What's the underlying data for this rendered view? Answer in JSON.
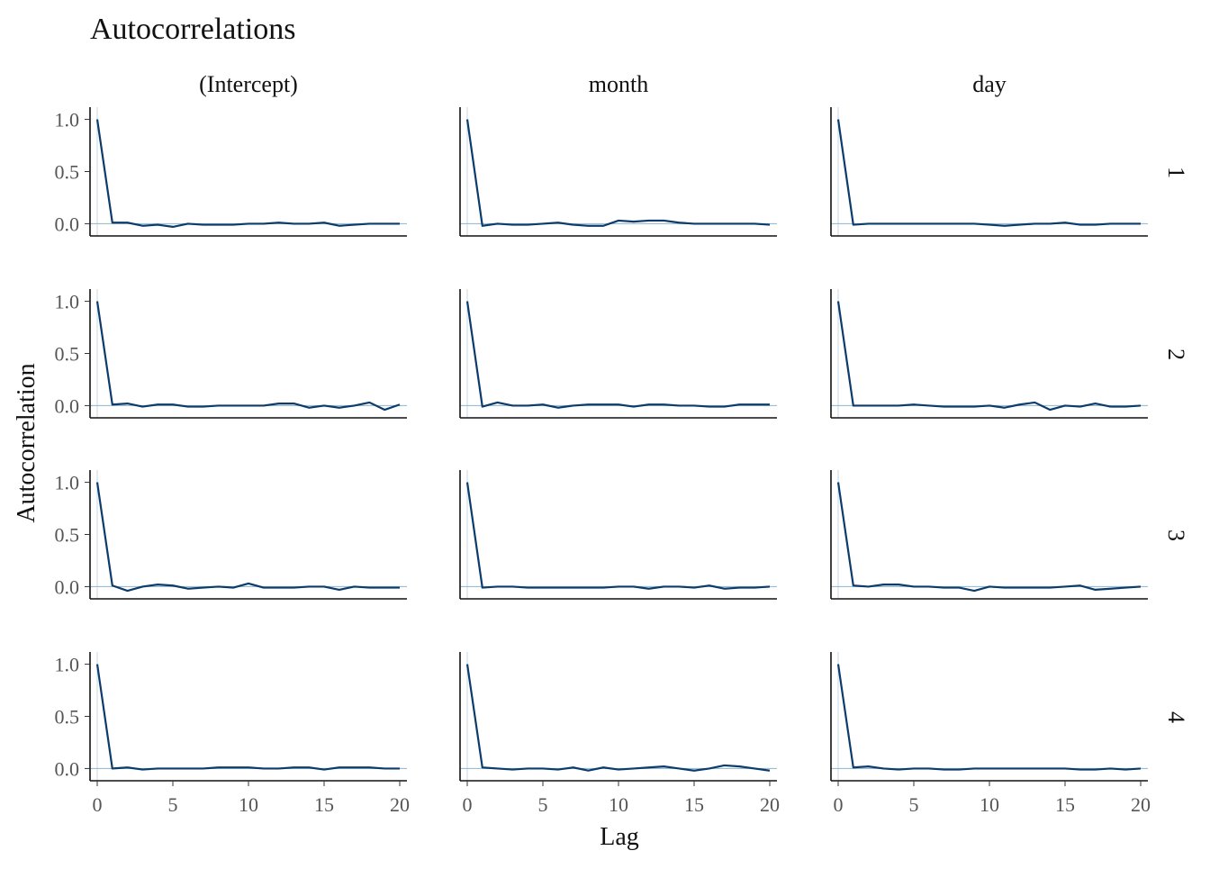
{
  "chart_data": {
    "type": "line",
    "title": "Autocorrelations",
    "xlabel": "Lag",
    "ylabel": "Autocorrelation",
    "columns": [
      "(Intercept)",
      "month",
      "day"
    ],
    "rows": [
      "1",
      "2",
      "3",
      "4"
    ],
    "xlim": [
      0,
      20
    ],
    "ylim": [
      -0.1,
      1.1
    ],
    "x_ticks": [
      0,
      5,
      10,
      15,
      20
    ],
    "y_ticks": [
      "0.0",
      "0.5",
      "1.0"
    ],
    "x_tick_labels": [
      "0",
      "5",
      "10",
      "15",
      "20"
    ],
    "y_tick_labels": [
      "0.0",
      "0.5",
      "1.0"
    ],
    "lags": [
      0,
      1,
      2,
      3,
      4,
      5,
      6,
      7,
      8,
      9,
      10,
      11,
      12,
      13,
      14,
      15,
      16,
      17,
      18,
      19,
      20
    ],
    "grid": false,
    "colors": {
      "line": "#0b3c6b",
      "reference": "#8fb4cc"
    },
    "panels": [
      {
        "row": "1",
        "column": "(Intercept)",
        "values": [
          1.0,
          0.01,
          0.01,
          -0.02,
          -0.01,
          -0.03,
          0.0,
          -0.01,
          -0.01,
          -0.01,
          0.0,
          0.0,
          0.01,
          0.0,
          0.0,
          0.01,
          -0.02,
          -0.01,
          0.0,
          0.0,
          0.0
        ]
      },
      {
        "row": "1",
        "column": "month",
        "values": [
          1.0,
          -0.02,
          0.0,
          -0.01,
          -0.01,
          0.0,
          0.01,
          -0.01,
          -0.02,
          -0.02,
          0.03,
          0.02,
          0.03,
          0.03,
          0.01,
          0.0,
          0.0,
          0.0,
          0.0,
          0.0,
          -0.01
        ]
      },
      {
        "row": "1",
        "column": "day",
        "values": [
          1.0,
          -0.01,
          0.0,
          0.0,
          0.0,
          0.0,
          0.0,
          0.0,
          0.0,
          0.0,
          -0.01,
          -0.02,
          -0.01,
          0.0,
          0.0,
          0.01,
          -0.01,
          -0.01,
          0.0,
          0.0,
          0.0
        ]
      },
      {
        "row": "2",
        "column": "(Intercept)",
        "values": [
          1.0,
          0.01,
          0.02,
          -0.01,
          0.01,
          0.01,
          -0.01,
          -0.01,
          0.0,
          0.0,
          0.0,
          0.0,
          0.02,
          0.02,
          -0.02,
          0.0,
          -0.02,
          0.0,
          0.03,
          -0.04,
          0.01
        ]
      },
      {
        "row": "2",
        "column": "month",
        "values": [
          1.0,
          -0.01,
          0.03,
          0.0,
          0.0,
          0.01,
          -0.02,
          0.0,
          0.01,
          0.01,
          0.01,
          -0.01,
          0.01,
          0.01,
          0.0,
          0.0,
          -0.01,
          -0.01,
          0.01,
          0.01,
          0.01
        ]
      },
      {
        "row": "2",
        "column": "day",
        "values": [
          1.0,
          0.0,
          0.0,
          0.0,
          0.0,
          0.01,
          0.0,
          -0.01,
          -0.01,
          -0.01,
          0.0,
          -0.02,
          0.01,
          0.03,
          -0.04,
          0.0,
          -0.01,
          0.02,
          -0.01,
          -0.01,
          0.0
        ]
      },
      {
        "row": "3",
        "column": "(Intercept)",
        "values": [
          1.0,
          0.01,
          -0.04,
          0.0,
          0.02,
          0.01,
          -0.02,
          -0.01,
          0.0,
          -0.01,
          0.03,
          -0.01,
          -0.01,
          -0.01,
          0.0,
          0.0,
          -0.03,
          0.0,
          -0.01,
          -0.01,
          -0.01
        ]
      },
      {
        "row": "3",
        "column": "month",
        "values": [
          1.0,
          -0.01,
          0.0,
          0.0,
          -0.01,
          -0.01,
          -0.01,
          -0.01,
          -0.01,
          -0.01,
          0.0,
          0.0,
          -0.02,
          0.0,
          0.0,
          -0.01,
          0.01,
          -0.02,
          -0.01,
          -0.01,
          0.0
        ]
      },
      {
        "row": "3",
        "column": "day",
        "values": [
          1.0,
          0.01,
          0.0,
          0.02,
          0.02,
          0.0,
          0.0,
          -0.01,
          -0.01,
          -0.04,
          0.0,
          -0.01,
          -0.01,
          -0.01,
          -0.01,
          0.0,
          0.01,
          -0.03,
          -0.02,
          -0.01,
          0.0
        ]
      },
      {
        "row": "4",
        "column": "(Intercept)",
        "values": [
          1.0,
          0.0,
          0.01,
          -0.01,
          0.0,
          0.0,
          0.0,
          0.0,
          0.01,
          0.01,
          0.01,
          0.0,
          0.0,
          0.01,
          0.01,
          -0.01,
          0.01,
          0.01,
          0.01,
          0.0,
          0.0
        ]
      },
      {
        "row": "4",
        "column": "month",
        "values": [
          1.0,
          0.01,
          0.0,
          -0.01,
          0.0,
          0.0,
          -0.01,
          0.01,
          -0.02,
          0.01,
          -0.01,
          0.0,
          0.01,
          0.02,
          0.0,
          -0.02,
          0.0,
          0.03,
          0.02,
          0.0,
          -0.02
        ]
      },
      {
        "row": "4",
        "column": "day",
        "values": [
          1.0,
          0.01,
          0.02,
          0.0,
          -0.01,
          0.0,
          0.0,
          -0.01,
          -0.01,
          0.0,
          0.0,
          0.0,
          0.0,
          0.0,
          0.0,
          0.0,
          -0.01,
          -0.01,
          0.0,
          -0.01,
          0.0
        ]
      }
    ]
  }
}
